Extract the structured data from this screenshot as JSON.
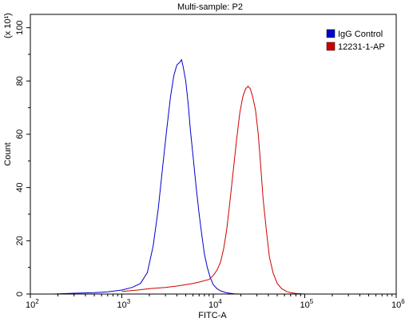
{
  "chart_data": {
    "type": "line",
    "title": "Multi-sample: P2",
    "xlabel": "FITC-A",
    "ylabel": "Count",
    "x_scale": "log",
    "xlim": [
      100,
      1000000
    ],
    "ylim": [
      0,
      105
    ],
    "y_multiplier": "(x 10¹)",
    "x_ticks": [
      {
        "value": 100,
        "base": "10",
        "exp": "2"
      },
      {
        "value": 1000,
        "base": "10",
        "exp": "3"
      },
      {
        "value": 10000,
        "base": "10",
        "exp": "4"
      },
      {
        "value": 100000,
        "base": "10",
        "exp": "5"
      },
      {
        "value": 1000000,
        "base": "10",
        "exp": "6"
      }
    ],
    "y_ticks": [
      0,
      20,
      40,
      60,
      80,
      100
    ],
    "legend": {
      "placement": "top-right"
    },
    "series": [
      {
        "name": "IgG Control",
        "color": "#0000cc",
        "x": [
          180,
          300,
          500,
          700,
          1000,
          1300,
          1600,
          1900,
          2200,
          2500,
          2800,
          3100,
          3400,
          3700,
          4000,
          4300,
          4500,
          4700,
          5000,
          5300,
          5600,
          6000,
          6500,
          7000,
          7500,
          8000,
          8600,
          9300,
          10000,
          11000,
          12000,
          13500,
          15000,
          17000,
          20000
        ],
        "y": [
          0,
          0.3,
          0.5,
          0.8,
          1.5,
          2.5,
          4,
          8,
          18,
          32,
          48,
          62,
          74,
          82,
          86,
          87,
          88,
          85,
          80,
          72,
          62,
          52,
          40,
          30,
          22,
          15,
          10,
          6,
          3.5,
          2,
          1.2,
          0.6,
          0.3,
          0.1,
          0
        ]
      },
      {
        "name": "12231-1-AP",
        "color": "#cc0000",
        "x": [
          1000,
          1500,
          2000,
          3000,
          4000,
          5000,
          6000,
          7000,
          8000,
          9000,
          10000,
          11000,
          12000,
          13000,
          14000,
          15000,
          16500,
          18000,
          19500,
          21000,
          22500,
          24000,
          25500,
          27000,
          29000,
          31000,
          33000,
          35000,
          38000,
          41000,
          45000,
          50000,
          56000,
          63000,
          70000,
          80000,
          100000
        ],
        "y": [
          1,
          1.5,
          2,
          2.5,
          3,
          3.5,
          4,
          4.5,
          5,
          5.5,
          7,
          9,
          12,
          17,
          24,
          33,
          46,
          58,
          68,
          74,
          77,
          78,
          77,
          74,
          69,
          60,
          48,
          36,
          24,
          14,
          8,
          4,
          2,
          1,
          0.5,
          0.2,
          0
        ]
      }
    ]
  }
}
